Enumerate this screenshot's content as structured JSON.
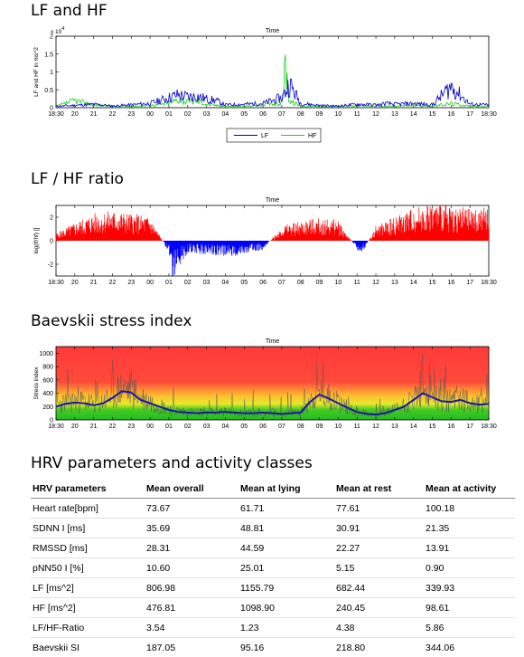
{
  "sections": {
    "lfhf": "LF and HF",
    "ratio": "LF / HF ratio",
    "stress": "Baevskii stress index",
    "table": "HRV parameters and activity classes"
  },
  "colors": {
    "lf": "#0000cc",
    "hf": "#22cc22",
    "ratio_pos": "#ff0000",
    "ratio_neg": "#0000ff",
    "si_line": "#1a1aa0",
    "si_raw": "#555555"
  },
  "chart_data": [
    {
      "type": "line",
      "title": "Time",
      "xlabel": "",
      "ylabel": "LF and HF in ms^2",
      "y_multiplier": "x 10^4",
      "y_multiplier_base": "x 10",
      "y_multiplier_exp": "4",
      "ylim": [
        0,
        2
      ],
      "yticks": [
        "0",
        "0.5",
        "1",
        "1.5",
        "2"
      ],
      "x_ticks": [
        "18:30",
        "20",
        "21",
        "22",
        "23",
        "00",
        "01",
        "02",
        "03",
        "04",
        "05",
        "06",
        "07",
        "08",
        "09",
        "10",
        "11",
        "12",
        "13",
        "14",
        "15",
        "16",
        "17",
        "18:30"
      ],
      "legend": [
        "LF",
        "HF"
      ],
      "legend_position": "bottom-center",
      "x": [
        0,
        1,
        2,
        3,
        4,
        5,
        6,
        6.5,
        7,
        7.5,
        8,
        8.5,
        9,
        10,
        11,
        12,
        12.2,
        12.4,
        13,
        14,
        15,
        16,
        17,
        17.2,
        17.5,
        18,
        19,
        20,
        21,
        22,
        23
      ],
      "series": [
        {
          "name": "LF",
          "values": [
            0.05,
            0.08,
            0.12,
            0.06,
            0.1,
            0.15,
            0.35,
            0.45,
            0.38,
            0.4,
            0.3,
            0.25,
            0.1,
            0.12,
            0.15,
            0.35,
            0.55,
            0.85,
            0.15,
            0.08,
            0.06,
            0.12,
            0.1,
            0.1,
            0.15,
            0.12,
            0.15,
            0.1,
            0.75,
            0.12,
            0.1
          ]
        },
        {
          "name": "HF",
          "values": [
            0.04,
            0.25,
            0.1,
            0.05,
            0.05,
            0.08,
            0.15,
            0.3,
            0.2,
            0.25,
            0.12,
            0.08,
            0.05,
            0.05,
            0.1,
            0.15,
            1.55,
            0.25,
            0.06,
            0.04,
            0.04,
            0.06,
            0.06,
            0.05,
            0.05,
            0.05,
            0.08,
            0.05,
            0.15,
            0.06,
            0.05
          ]
        }
      ]
    },
    {
      "type": "bar",
      "title": "Time",
      "xlabel": "",
      "ylabel": "log(lf/hf) []",
      "ylim": [
        -3,
        3
      ],
      "yticks": [
        "2",
        "0",
        "-2"
      ],
      "x_ticks": [
        "18:30",
        "20",
        "21",
        "22",
        "23",
        "00",
        "01",
        "02",
        "03",
        "04",
        "05",
        "06",
        "07",
        "08",
        "09",
        "10",
        "11",
        "12",
        "13",
        "14",
        "15",
        "16",
        "17",
        "18:30"
      ],
      "x": [
        0,
        1,
        2,
        3,
        4,
        5,
        6,
        6.2,
        7,
        8,
        9,
        10,
        11,
        12,
        13,
        14,
        15,
        16,
        16.3,
        17,
        18,
        19,
        20,
        21,
        22,
        23
      ],
      "series": [
        {
          "name": "",
          "values": [
            0.5,
            1.2,
            1.8,
            2.0,
            1.8,
            1.6,
            -0.8,
            -2.5,
            -0.8,
            -0.9,
            -1.0,
            -1.0,
            -0.6,
            1.0,
            1.3,
            1.5,
            1.4,
            -0.6,
            -0.8,
            1.0,
            1.6,
            2.2,
            2.5,
            2.3,
            2.1,
            2.2
          ]
        }
      ]
    },
    {
      "type": "line",
      "title": "Time",
      "xlabel": "",
      "ylabel": "Stress index",
      "ylim": [
        0,
        1100
      ],
      "yticks": [
        "0",
        "200",
        "400",
        "600",
        "800",
        "1000"
      ],
      "x_ticks": [
        "18:30",
        "20",
        "21",
        "22",
        "23",
        "00",
        "01",
        "02",
        "03",
        "04",
        "05",
        "06",
        "07",
        "08",
        "09",
        "10",
        "11",
        "12",
        "13",
        "14",
        "15",
        "16",
        "17",
        "18:30"
      ],
      "background_bands": [
        "green",
        "yellow",
        "orange",
        "red"
      ],
      "x": [
        0,
        0.5,
        1,
        1.5,
        2,
        2.5,
        3,
        3.5,
        4,
        4.5,
        5,
        5.5,
        6,
        6.5,
        7,
        7.5,
        8,
        8.5,
        9,
        9.5,
        10,
        10.5,
        11,
        11.5,
        12,
        12.5,
        13,
        13.5,
        14,
        14.5,
        15,
        15.5,
        16,
        16.5,
        17,
        17.5,
        18,
        18.5,
        19,
        19.5,
        20,
        20.5,
        21,
        21.5,
        22,
        22.5,
        23
      ],
      "series": [
        {
          "name": "",
          "values": [
            200,
            240,
            260,
            250,
            220,
            250,
            330,
            430,
            410,
            300,
            250,
            200,
            150,
            120,
            110,
            100,
            110,
            110,
            120,
            110,
            100,
            100,
            110,
            100,
            90,
            100,
            110,
            270,
            380,
            320,
            250,
            180,
            120,
            90,
            80,
            100,
            150,
            200,
            300,
            400,
            340,
            280,
            270,
            300,
            250,
            230,
            240
          ]
        }
      ]
    }
  ],
  "table": {
    "headers": [
      "HRV parameters",
      "Mean overall",
      "Mean at lying",
      "Mean at rest",
      "Mean at activity"
    ],
    "rows": [
      [
        "Heart rate[bpm]",
        "73.67",
        "61.71",
        "77.61",
        "100.18"
      ],
      [
        "SDNN I [ms]",
        "35.69",
        "48.81",
        "30.91",
        "21.35"
      ],
      [
        "RMSSD [ms]",
        "28.31",
        "44.59",
        "22.27",
        "13.91"
      ],
      [
        "pNN50 I [%]",
        "10.60",
        "25.01",
        "5.15",
        "0.90"
      ],
      [
        "LF [ms^2]",
        "806.98",
        "1155.79",
        "682.44",
        "339.93"
      ],
      [
        "HF [ms^2]",
        "476.81",
        "1098.90",
        "240.45",
        "98.61"
      ],
      [
        "LF/HF-Ratio",
        "3.54",
        "1.23",
        "4.38",
        "5.86"
      ],
      [
        "Baevskii SI",
        "187.05",
        "95.16",
        "218.80",
        "344.06"
      ]
    ]
  }
}
